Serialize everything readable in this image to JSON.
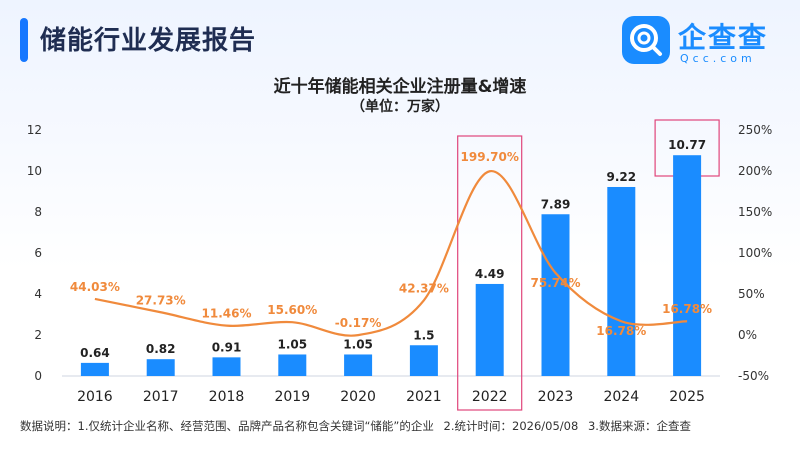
{
  "header": {
    "title": "储能行业发展报告"
  },
  "logo": {
    "name": "企查查",
    "sub": "Qcc.com",
    "icon": "qcc-logo-icon"
  },
  "chart_data": {
    "type": "bar+line",
    "title": "近十年储能相关企业注册量&增速",
    "subtitle": "（单位：万家）",
    "categories": [
      "2016",
      "2017",
      "2018",
      "2019",
      "2020",
      "2021",
      "2022",
      "2023",
      "2024",
      "2025"
    ],
    "bar_labels": [
      "0.64",
      "0.82",
      "0.91",
      "1.05",
      "1.05",
      "1.5",
      "4.49",
      "7.89",
      "9.22",
      "10.77"
    ],
    "line_labels": [
      "44.03%",
      "27.73%",
      "11.46%",
      "15.60%",
      "-0.17%",
      "42.37%",
      "199.70%",
      "75.74%",
      "16.78%",
      "16.78%"
    ],
    "series": [
      {
        "type": "bar",
        "values": [
          0.64,
          0.82,
          0.91,
          1.05,
          1.05,
          1.5,
          4.49,
          7.89,
          9.22,
          10.77
        ],
        "color": "#1a8cff"
      },
      {
        "type": "line",
        "axis": "right",
        "values": [
          44.03,
          27.73,
          11.46,
          15.6,
          -0.17,
          42.37,
          199.7,
          75.74,
          16.78,
          16.78
        ],
        "color": "#f08a3c"
      }
    ],
    "y_left": {
      "min": 0,
      "max": 12,
      "ticks": [
        "0",
        "2",
        "4",
        "6",
        "8",
        "10",
        "12"
      ]
    },
    "y_right": {
      "min": -50,
      "max": 250,
      "ticks": [
        "-50%",
        "0%",
        "50%",
        "100%",
        "150%",
        "200%",
        "250%"
      ]
    },
    "highlight_categories": [
      "2022",
      "2025"
    ],
    "highlight_color": "#e0457b",
    "grid": false
  },
  "footer": {
    "items": [
      "数据说明：1.仅统计企业名称、经营范围、品牌产品名称包含关键词“储能”的企业",
      "2.统计时间：2026/05/08",
      "3.数据来源：企查查"
    ]
  }
}
